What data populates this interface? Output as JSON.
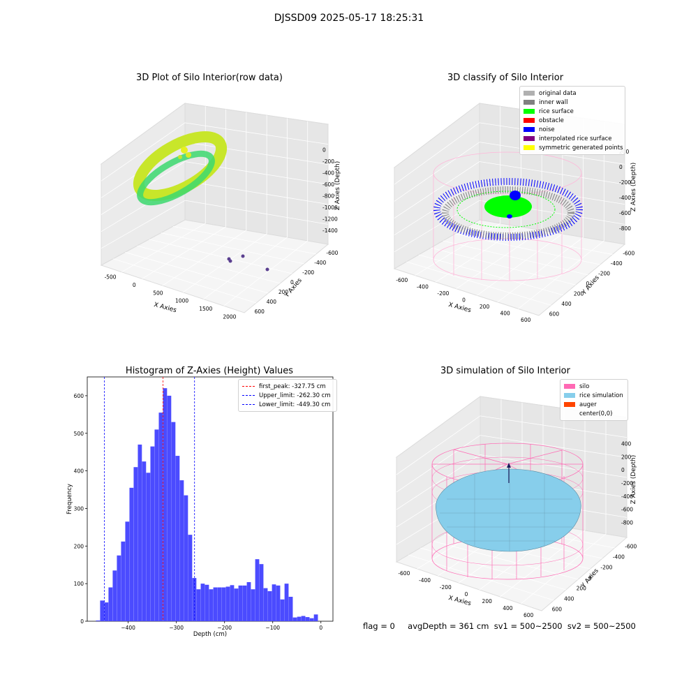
{
  "figure": {
    "suptitle": "DJSSD09 2025-05-17 18:25:31",
    "footer": {
      "flag": "flag = 0",
      "avg": "avgDepth = 361 cm  sv1 = 500~2500  sv2 = 500~2500"
    }
  },
  "chart_data": [
    {
      "type": "scatter",
      "title": "3D Plot of Silo Interior(row data)",
      "xlabel": "X Axies",
      "ylabel": "Y Axies",
      "zlabel": "Z Axies (Depth)",
      "x_ticks": [
        "-500",
        "0",
        "500",
        "1000",
        "1500",
        "2000"
      ],
      "y_ticks": [
        "-600",
        "-400",
        "-200",
        "0",
        "200",
        "400",
        "600"
      ],
      "z_ticks": [
        "0",
        "-200",
        "-400",
        "-600",
        "-800",
        "-1000",
        "-1200",
        "-1400"
      ],
      "colors": {
        "surface_main": "#c8e62a",
        "surface_low": "#3cd86e",
        "outlier": "#5a3f8f"
      }
    },
    {
      "type": "scatter",
      "title": "3D classify of Silo Interior",
      "xlabel": "X Axies",
      "ylabel": "Y Axies",
      "zlabel": "Z Axies (Depth)",
      "x_ticks": [
        "-600",
        "-400",
        "-200",
        "0",
        "200",
        "400",
        "600"
      ],
      "y_ticks": [
        "-600",
        "-400",
        "-200",
        "0",
        "200",
        "400",
        "600"
      ],
      "z_ticks": [
        "200",
        "0",
        "-200",
        "-400",
        "-600",
        "-800"
      ],
      "legend": [
        {
          "label": "original data",
          "color": "#b0b0b0"
        },
        {
          "label": "inner wall",
          "color": "#808080"
        },
        {
          "label": "rice surface",
          "color": "#00ff00"
        },
        {
          "label": "obstacle",
          "color": "#ff0000"
        },
        {
          "label": "noise",
          "color": "#0000ff"
        },
        {
          "label": "interpolated rice surface",
          "color": "#800080"
        },
        {
          "label": "symmetric generated points",
          "color": "#ffff00"
        }
      ]
    },
    {
      "type": "bar",
      "title": "Histogram of Z-Axies (Height) Values",
      "xlabel": "Depth (cm)",
      "ylabel": "Frequency",
      "xlim": [
        -485,
        25
      ],
      "ylim": [
        0,
        650
      ],
      "bin_width": 8.7,
      "bins_start": [
        -467,
        -458.3,
        -449.6,
        -440.9,
        -432.2,
        -423.5,
        -414.8,
        -406.1,
        -397.4,
        -388.7,
        -380,
        -371.3,
        -362.6,
        -353.9,
        -345.2,
        -336.5,
        -327.8,
        -319.1,
        -310.4,
        -301.7,
        -293,
        -284.3,
        -275.6,
        -266.9,
        -258.2,
        -249.5,
        -240.8,
        -232.1,
        -223.4,
        -214.7,
        -206,
        -197.3,
        -188.6,
        -179.9,
        -171.2,
        -162.5,
        -153.8,
        -145.1,
        -136.4,
        -127.7,
        -119,
        -110.3,
        -101.6,
        -92.9,
        -84.2,
        -75.5,
        -66.8,
        -58.1,
        -49.4,
        -40.7,
        -32,
        -23.3,
        -14.6,
        -5.9
      ],
      "values": [
        2,
        55,
        50,
        90,
        135,
        175,
        212,
        265,
        355,
        410,
        470,
        425,
        395,
        465,
        510,
        555,
        620,
        600,
        530,
        440,
        375,
        335,
        230,
        115,
        85,
        100,
        97,
        85,
        90,
        90,
        90,
        92,
        96,
        87,
        95,
        95,
        104,
        85,
        165,
        152,
        88,
        80,
        98,
        95,
        58,
        100,
        65,
        10,
        12,
        14,
        11,
        8,
        18,
        0
      ],
      "x_ticks": [
        -400,
        -300,
        -200,
        -100,
        0
      ],
      "y_ticks": [
        0,
        100,
        200,
        300,
        400,
        500,
        600
      ],
      "bar_color": "#4b4bff",
      "vlines": [
        {
          "label": "first_peak: -327.75 cm",
          "x": -327.75,
          "color": "#ff0000"
        },
        {
          "label": "Upper_limit: -262.30 cm",
          "x": -262.3,
          "color": "#0000ff"
        },
        {
          "label": "Lower_limit: -449.30 cm",
          "x": -449.3,
          "color": "#0000ff"
        }
      ],
      "legend_position": "top-right"
    },
    {
      "type": "area",
      "title": "3D simulation of Silo Interior",
      "xlabel": "X Axies",
      "ylabel": "Y Axies",
      "zlabel": "Z Axies (Depth)",
      "x_ticks": [
        "-600",
        "-400",
        "-200",
        "0",
        "200",
        "400",
        "600"
      ],
      "y_ticks": [
        "-600",
        "-400",
        "-200",
        "0",
        "200",
        "400",
        "600"
      ],
      "z_ticks": [
        "400",
        "200",
        "0",
        "-200",
        "-400",
        "-600",
        "-800"
      ],
      "legend": [
        {
          "label": "silo",
          "color": "#ff69b4"
        },
        {
          "label": "rice simulation",
          "color": "#87ceeb"
        },
        {
          "label": "auger",
          "color": "#ff4500"
        },
        {
          "label": "center(0,0)",
          "color": ""
        }
      ]
    }
  ]
}
